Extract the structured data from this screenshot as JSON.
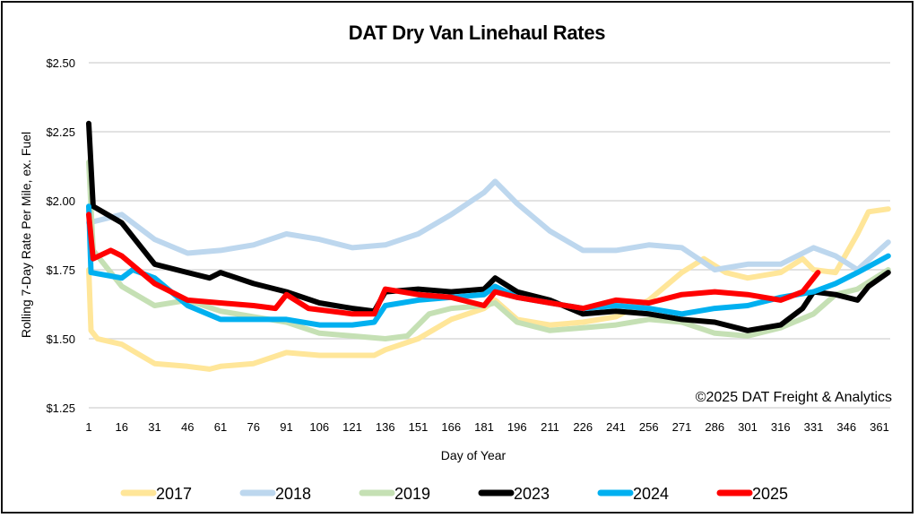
{
  "chart_data": {
    "type": "line",
    "title": "DAT Dry Van Linehaul Rates",
    "xlabel": "Day of Year",
    "ylabel": "Rolling 7-Day Rate Per Mile, ex. Fuel",
    "ylim": [
      1.25,
      2.5
    ],
    "xlim": [
      1,
      365
    ],
    "y_ticks": [
      "$2.50",
      "$2.25",
      "$2.00",
      "$1.75",
      "$1.50",
      "$1.25"
    ],
    "y_tick_values": [
      2.5,
      2.25,
      2.0,
      1.75,
      1.5,
      1.25
    ],
    "x_ticks": [
      "1",
      "16",
      "31",
      "46",
      "61",
      "76",
      "91",
      "106",
      "121",
      "136",
      "151",
      "166",
      "181",
      "196",
      "211",
      "226",
      "241",
      "256",
      "271",
      "286",
      "301",
      "316",
      "331",
      "346",
      "361"
    ],
    "grid": true,
    "legend_position": "bottom",
    "annotation": "©2025 DAT Freight & Analytics",
    "series": [
      {
        "name": "2017",
        "color": "#FFE699",
        "x": [
          1,
          2,
          5,
          16,
          31,
          46,
          56,
          61,
          76,
          91,
          106,
          121,
          131,
          136,
          151,
          166,
          181,
          186,
          196,
          211,
          226,
          241,
          256,
          271,
          281,
          291,
          301,
          316,
          326,
          331,
          341,
          351,
          356,
          365
        ],
        "y": [
          1.75,
          1.53,
          1.5,
          1.48,
          1.41,
          1.4,
          1.39,
          1.4,
          1.41,
          1.45,
          1.44,
          1.44,
          1.44,
          1.46,
          1.5,
          1.57,
          1.61,
          1.64,
          1.57,
          1.55,
          1.56,
          1.58,
          1.64,
          1.74,
          1.79,
          1.74,
          1.72,
          1.74,
          1.79,
          1.75,
          1.74,
          1.88,
          1.96,
          1.97
        ]
      },
      {
        "name": "2018",
        "color": "#BDD7EE",
        "x": [
          1,
          16,
          31,
          46,
          61,
          76,
          91,
          106,
          121,
          136,
          151,
          166,
          181,
          186,
          196,
          211,
          226,
          241,
          256,
          271,
          286,
          301,
          316,
          331,
          341,
          351,
          365
        ],
        "y": [
          1.92,
          1.95,
          1.86,
          1.81,
          1.82,
          1.84,
          1.88,
          1.86,
          1.83,
          1.84,
          1.88,
          1.95,
          2.03,
          2.07,
          1.99,
          1.89,
          1.82,
          1.82,
          1.84,
          1.83,
          1.75,
          1.77,
          1.77,
          1.83,
          1.8,
          1.75,
          1.85
        ]
      },
      {
        "name": "2019",
        "color": "#C5E0B4",
        "x": [
          1,
          3,
          16,
          31,
          46,
          61,
          76,
          91,
          106,
          121,
          136,
          146,
          156,
          166,
          181,
          186,
          196,
          211,
          226,
          241,
          256,
          271,
          286,
          301,
          316,
          331,
          341,
          351,
          365
        ],
        "y": [
          2.14,
          1.82,
          1.69,
          1.62,
          1.64,
          1.6,
          1.58,
          1.56,
          1.52,
          1.51,
          1.5,
          1.51,
          1.59,
          1.61,
          1.62,
          1.63,
          1.56,
          1.53,
          1.54,
          1.55,
          1.57,
          1.56,
          1.52,
          1.51,
          1.54,
          1.59,
          1.66,
          1.68,
          1.75
        ]
      },
      {
        "name": "2023",
        "color": "#000000",
        "x": [
          1,
          3,
          16,
          31,
          46,
          56,
          61,
          76,
          91,
          106,
          121,
          131,
          136,
          151,
          166,
          181,
          186,
          196,
          211,
          226,
          241,
          256,
          271,
          286,
          301,
          316,
          326,
          331,
          341,
          351,
          356,
          365
        ],
        "y": [
          2.28,
          1.98,
          1.92,
          1.77,
          1.74,
          1.72,
          1.74,
          1.7,
          1.67,
          1.63,
          1.61,
          1.6,
          1.67,
          1.68,
          1.67,
          1.68,
          1.72,
          1.67,
          1.64,
          1.59,
          1.6,
          1.59,
          1.57,
          1.56,
          1.53,
          1.55,
          1.61,
          1.67,
          1.66,
          1.64,
          1.69,
          1.74
        ]
      },
      {
        "name": "2024",
        "color": "#00B0F0",
        "x": [
          1,
          2,
          16,
          21,
          31,
          46,
          61,
          76,
          91,
          106,
          121,
          131,
          136,
          151,
          166,
          181,
          186,
          196,
          211,
          226,
          241,
          256,
          271,
          286,
          301,
          316,
          331,
          341,
          351,
          365
        ],
        "y": [
          1.98,
          1.74,
          1.72,
          1.75,
          1.72,
          1.62,
          1.57,
          1.57,
          1.57,
          1.55,
          1.55,
          1.56,
          1.62,
          1.64,
          1.65,
          1.66,
          1.69,
          1.65,
          1.63,
          1.61,
          1.62,
          1.61,
          1.59,
          1.61,
          1.62,
          1.65,
          1.67,
          1.7,
          1.74,
          1.8
        ]
      },
      {
        "name": "2025",
        "color": "#FF0000",
        "x": [
          1,
          3,
          11,
          16,
          31,
          46,
          61,
          76,
          86,
          91,
          101,
          121,
          131,
          136,
          151,
          166,
          181,
          186,
          196,
          211,
          226,
          241,
          256,
          271,
          286,
          301,
          316,
          326,
          333
        ],
        "y": [
          1.95,
          1.79,
          1.82,
          1.8,
          1.7,
          1.64,
          1.63,
          1.62,
          1.61,
          1.66,
          1.61,
          1.59,
          1.59,
          1.68,
          1.66,
          1.65,
          1.62,
          1.67,
          1.65,
          1.63,
          1.61,
          1.64,
          1.63,
          1.66,
          1.67,
          1.66,
          1.64,
          1.67,
          1.74
        ]
      }
    ]
  }
}
